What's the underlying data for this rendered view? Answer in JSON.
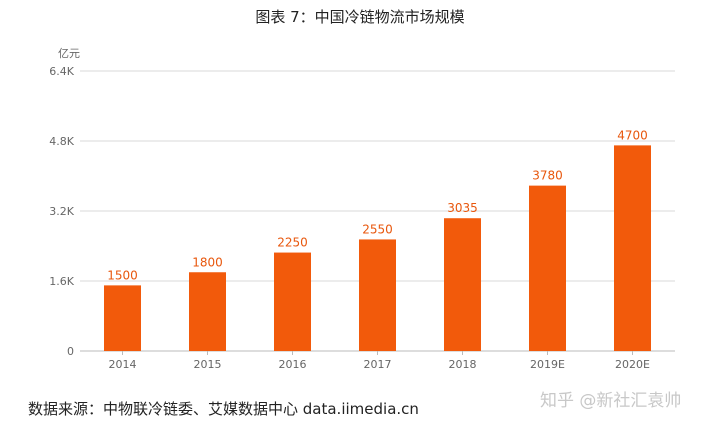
{
  "chart_data": {
    "type": "bar",
    "title": "图表 7：中国冷链物流市场规模",
    "ylabel": "亿元",
    "xlabel": "",
    "categories": [
      "2014",
      "2015",
      "2016",
      "2017",
      "2018",
      "2019E",
      "2020E"
    ],
    "values": [
      1500,
      1800,
      2250,
      2550,
      3035,
      3780,
      4700
    ],
    "ylim": [
      0,
      6400
    ],
    "yticks": [
      0,
      1600,
      3200,
      4800,
      6400
    ],
    "ytick_labels": [
      "0",
      "1.6K",
      "3.2K",
      "4.8K",
      "6.4K"
    ],
    "bar_color": "#f25a0b",
    "label_color": "#e8570d",
    "grid": true
  },
  "source_text": "数据来源：中物联冷链委、艾媒数据中心 data.iimedia.cn",
  "watermark_text": "知乎 @新社汇袁帅"
}
